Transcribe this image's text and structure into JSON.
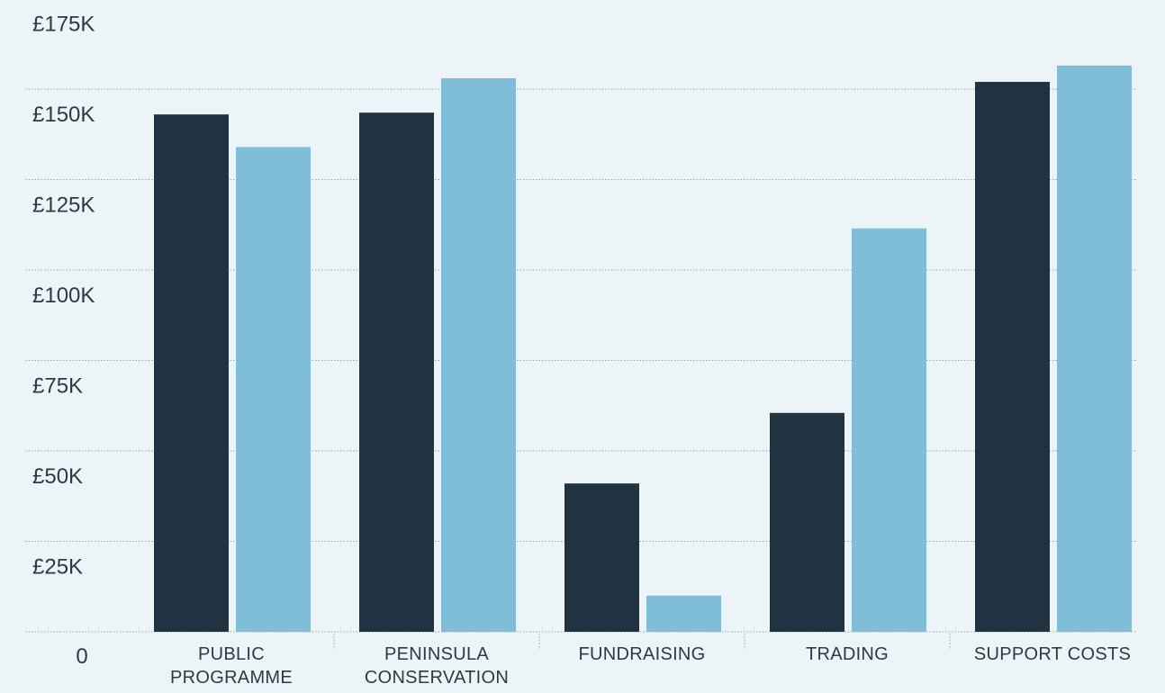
{
  "colors": {
    "background": "#edf4f8",
    "series_dark": "#1f3341",
    "series_light": "#7fbdd9",
    "grid": "#9aa6ae",
    "text": "#2b3a47"
  },
  "chart_data": {
    "type": "bar",
    "categories": [
      [
        "PUBLIC",
        "PROGRAMME"
      ],
      [
        "PENINSULA",
        "CONSERVATION"
      ],
      [
        "FUNDRAISING"
      ],
      [
        "TRADING"
      ],
      [
        "SUPPORT COSTS"
      ]
    ],
    "series": [
      {
        "color": "#1f3341",
        "values": [
          143000,
          143500,
          41000,
          60500,
          152000
        ]
      },
      {
        "color": "#7fbdd9",
        "values": [
          134000,
          153000,
          10000,
          111500,
          156500
        ]
      }
    ],
    "y_ticks": [
      {
        "value": 0,
        "label": "0"
      },
      {
        "value": 25000,
        "label": "£25K"
      },
      {
        "value": 50000,
        "label": "£50K"
      },
      {
        "value": 75000,
        "label": "£75K"
      },
      {
        "value": 100000,
        "label": "£100K"
      },
      {
        "value": 125000,
        "label": "£125K"
      },
      {
        "value": 150000,
        "label": "£150K"
      },
      {
        "value": 175000,
        "label": "£175K"
      }
    ],
    "ylim": [
      0,
      175000
    ],
    "grid": true,
    "legend": "none"
  }
}
